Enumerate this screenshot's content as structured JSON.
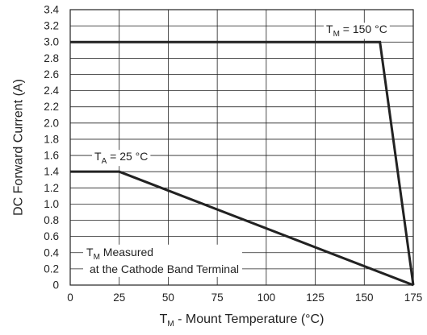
{
  "chart_data": {
    "type": "line",
    "xlabel": {
      "main": "T",
      "sub": "M",
      "rest": " - Mount Temperature (°C)"
    },
    "ylabel": "DC Forward Current (A)",
    "xlim": [
      0,
      175
    ],
    "ylim": [
      0,
      3.4
    ],
    "x_ticks": [
      0,
      25,
      50,
      75,
      100,
      125,
      150,
      175
    ],
    "y_ticks": [
      0,
      0.2,
      0.4,
      0.6,
      0.8,
      1.0,
      1.2,
      1.4,
      1.6,
      1.8,
      2.0,
      2.2,
      2.4,
      2.6,
      2.8,
      3.0,
      3.2,
      3.4
    ],
    "y_tick_labels": [
      "0",
      "0.2",
      "0.4",
      "0.6",
      "0.8",
      "1.0",
      "1.2",
      "1.4",
      "1.6",
      "1.8",
      "2.0",
      "2.2",
      "2.4",
      "2.6",
      "2.8",
      "3.0",
      "3.2",
      "3.4"
    ],
    "grid": true,
    "series": [
      {
        "label": {
          "main": "T",
          "sub": "M",
          "rest": " = 150 °C"
        },
        "x": [
          0,
          158,
          175
        ],
        "y": [
          3.0,
          3.0,
          0
        ]
      },
      {
        "label": {
          "main": "T",
          "sub": "A",
          "rest": " = 25 °C"
        },
        "x": [
          0,
          25,
          175
        ],
        "y": [
          1.4,
          1.4,
          0
        ]
      }
    ],
    "annotation": {
      "line1_main": "T",
      "line1_sub": "M",
      "line1_rest": " Measured",
      "line2": "at the Cathode Band Terminal"
    }
  }
}
